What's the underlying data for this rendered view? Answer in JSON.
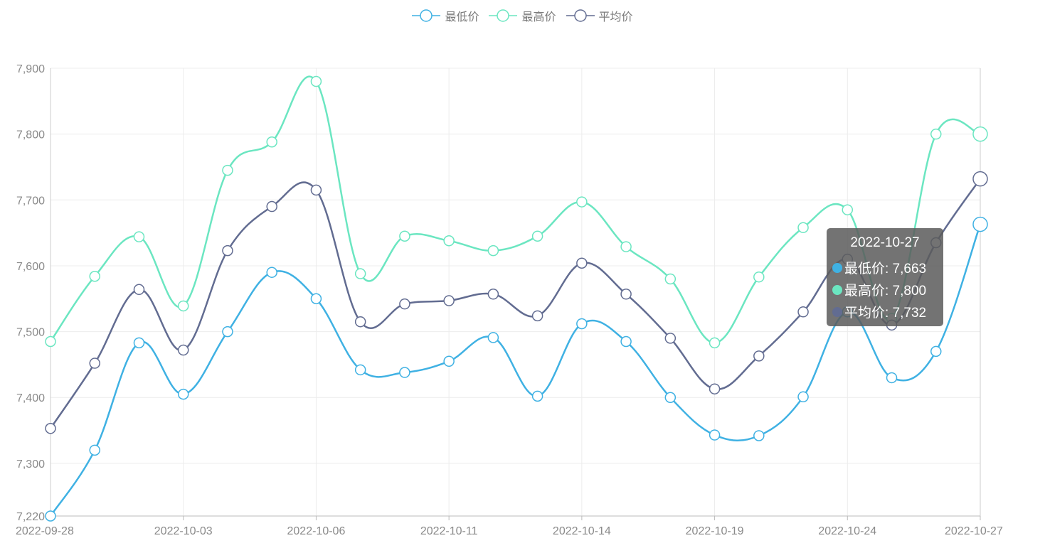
{
  "chart_data": {
    "type": "line",
    "smooth": true,
    "title": "",
    "xlabel": "",
    "ylabel": "",
    "ylim": [
      7220,
      7900
    ],
    "y_ticks": [
      7220,
      7300,
      7400,
      7500,
      7600,
      7700,
      7800,
      7900
    ],
    "y_tick_labels": [
      "7,220",
      "7,300",
      "7,400",
      "7,500",
      "7,600",
      "7,700",
      "7,800",
      "7,900"
    ],
    "x": [
      "2022-09-28",
      "2022-09-30",
      "2022-10-01",
      "2022-10-03",
      "2022-10-04",
      "2022-10-05",
      "2022-10-06",
      "2022-10-07",
      "2022-10-10",
      "2022-10-11",
      "2022-10-12",
      "2022-10-13",
      "2022-10-14",
      "2022-10-17",
      "2022-10-18",
      "2022-10-19",
      "2022-10-20",
      "2022-10-21",
      "2022-10-24",
      "2022-10-25",
      "2022-10-26",
      "2022-10-27"
    ],
    "x_tick_labels": [
      {
        "index": 0,
        "label": "2022-09-28"
      },
      {
        "index": 3,
        "label": "2022-10-03"
      },
      {
        "index": 6,
        "label": "2022-10-06"
      },
      {
        "index": 9,
        "label": "2022-10-11"
      },
      {
        "index": 12,
        "label": "2022-10-14"
      },
      {
        "index": 15,
        "label": "2022-10-19"
      },
      {
        "index": 18,
        "label": "2022-10-24"
      },
      {
        "index": 21,
        "label": "2022-10-27"
      }
    ],
    "grid": true,
    "legend_position": "top-center",
    "series": [
      {
        "name": "最低价",
        "color": "#3fb1e3",
        "values": [
          7220,
          7320,
          7483,
          7405,
          7500,
          7590,
          7550,
          7442,
          7438,
          7455,
          7491,
          7402,
          7512,
          7485,
          7400,
          7343,
          7342,
          7401,
          7530,
          7430,
          7470,
          7663
        ]
      },
      {
        "name": "最高价",
        "color": "#6be6c1",
        "values": [
          7485,
          7584,
          7644,
          7539,
          7745,
          7788,
          7880,
          7588,
          7645,
          7638,
          7623,
          7645,
          7697,
          7629,
          7580,
          7483,
          7583,
          7658,
          7685,
          7520,
          7800,
          7800
        ]
      },
      {
        "name": "平均价",
        "color": "#626c91",
        "values": [
          7353,
          7452,
          7564,
          7472,
          7623,
          7690,
          7715,
          7515,
          7542,
          7547,
          7557,
          7524,
          7604,
          7557,
          7490,
          7413,
          7463,
          7530,
          7610,
          7510,
          7635,
          7732
        ]
      }
    ],
    "tooltip": {
      "date": "2022-10-27",
      "rows": [
        {
          "text": "最低价: 7,663",
          "color": "#3fb1e3"
        },
        {
          "text": "最高价: 7,800",
          "color": "#6be6c1"
        },
        {
          "text": "平均价: 7,732",
          "color": "#626c91"
        }
      ]
    }
  }
}
